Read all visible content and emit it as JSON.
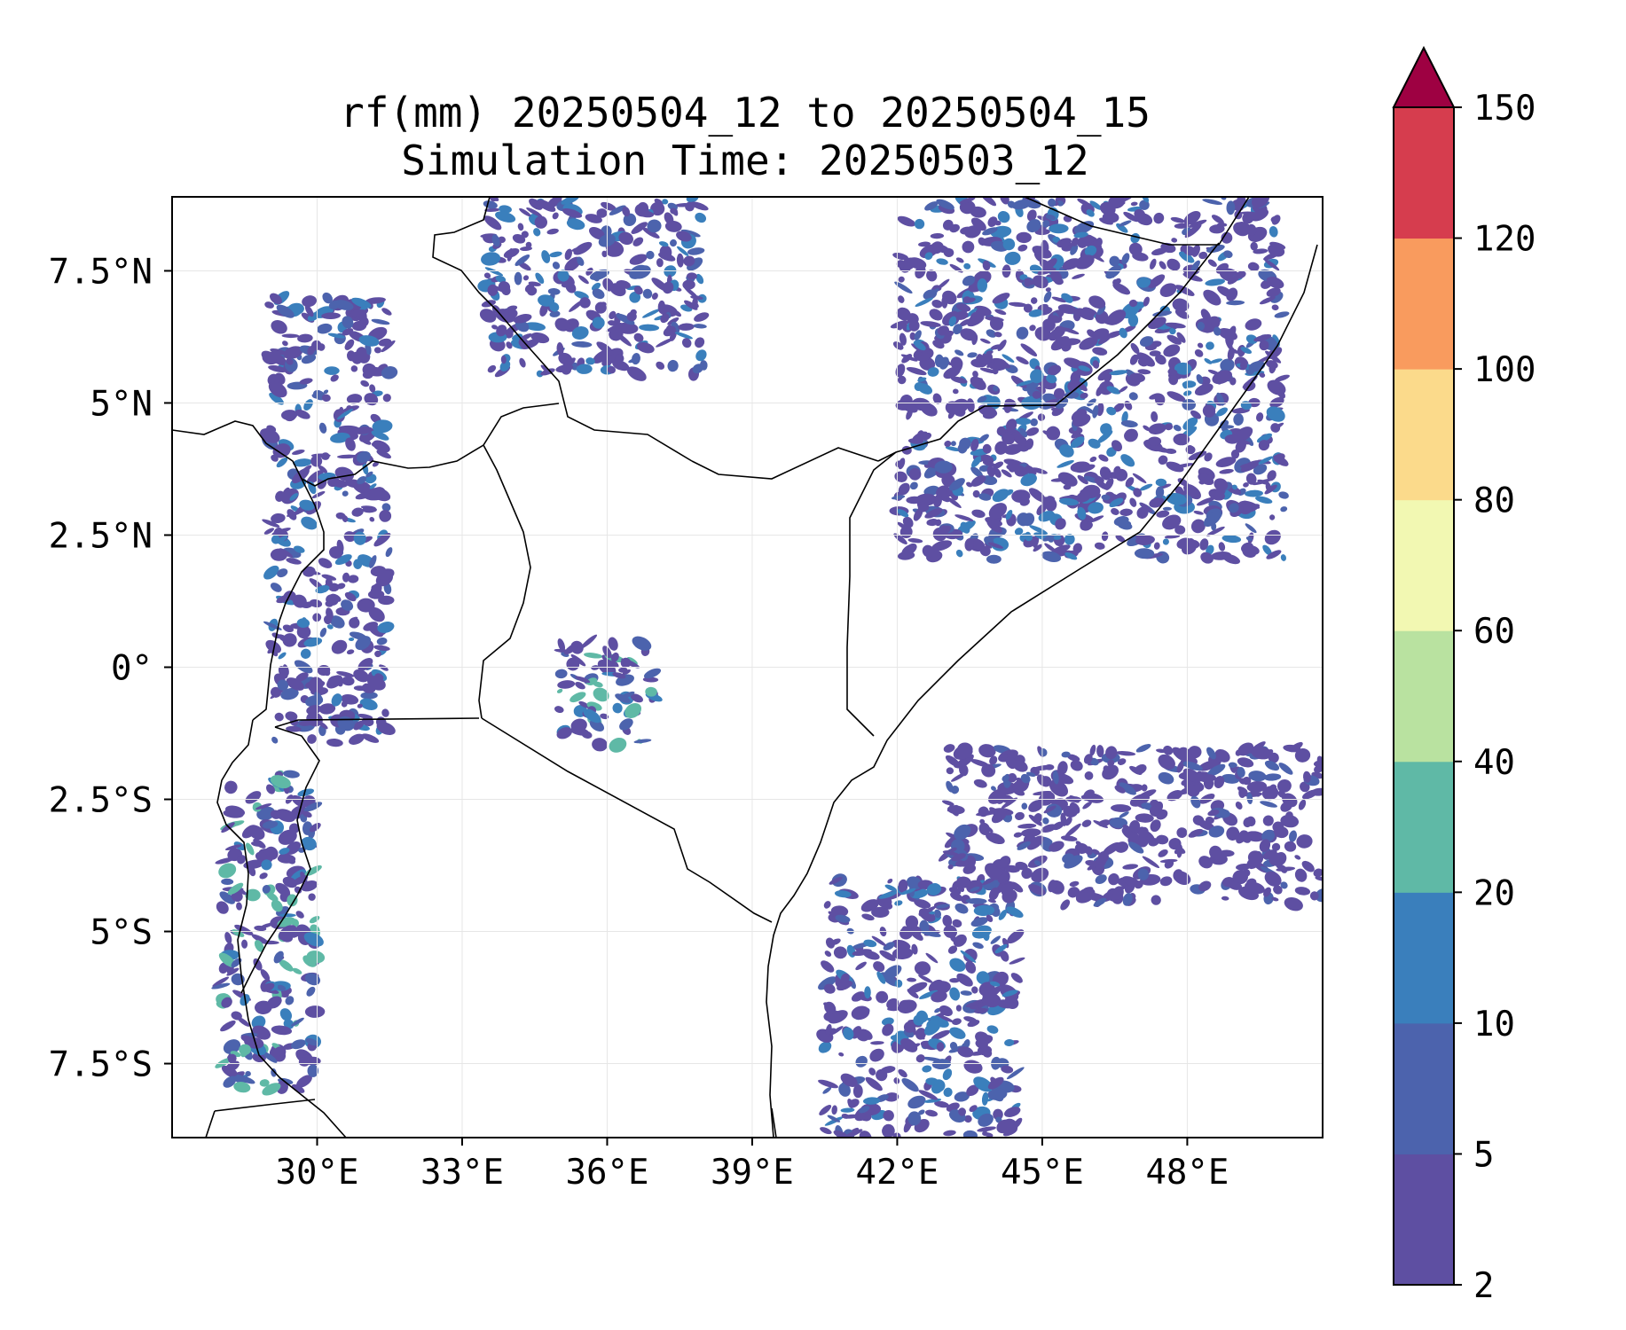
{
  "title": {
    "line1": "rf(mm) 20250504_12 to 20250504_15",
    "line2": "Simulation Time: 20250503_12"
  },
  "chart_data": {
    "type": "heatmap",
    "variable": "rf(mm)",
    "x_axis": {
      "range": [
        27.0,
        50.8
      ],
      "tick_values": [
        30,
        33,
        36,
        39,
        42,
        45,
        48
      ],
      "tick_labels": [
        "30°E",
        "33°E",
        "36°E",
        "39°E",
        "42°E",
        "45°E",
        "48°E"
      ]
    },
    "y_axis": {
      "range": [
        -8.9,
        8.9
      ],
      "tick_values": [
        7.5,
        5,
        2.5,
        0,
        -2.5,
        -5,
        -7.5
      ],
      "tick_labels": [
        "7.5°N",
        "5°N",
        "2.5°N",
        "0°",
        "2.5°S",
        "5°S",
        "7.5°S"
      ]
    },
    "grid": true,
    "colorbar": {
      "placement": "right",
      "extend": "max",
      "levels": [
        2,
        5,
        10,
        20,
        40,
        60,
        80,
        100,
        120,
        150
      ],
      "tick_labels": [
        "2",
        "5",
        "10",
        "20",
        "40",
        "60",
        "80",
        "100",
        "120",
        "150"
      ],
      "colors": [
        "#5e4fa2",
        "#4c63ad",
        "#3a7fbc",
        "#5fb9a6",
        "#b9e2a0",
        "#f2f8b2",
        "#fbda8b",
        "#f99b5e",
        "#d63d4e"
      ],
      "over_color": "#9e0142"
    },
    "rain_regions": [
      {
        "lon": [
          29.0,
          31.5
        ],
        "lat": [
          -1.5,
          7.0
        ],
        "max_mm": 20
      },
      {
        "lon": [
          28.0,
          30.0
        ],
        "lat": [
          -8.0,
          -2.0
        ],
        "max_mm": 40
      },
      {
        "lon": [
          35.0,
          37.0
        ],
        "lat": [
          -1.5,
          0.5
        ],
        "max_mm": 40
      },
      {
        "lon": [
          33.5,
          38.0
        ],
        "lat": [
          5.5,
          8.9
        ],
        "max_mm": 20
      },
      {
        "lon": [
          42.0,
          50.0
        ],
        "lat": [
          2.0,
          8.9
        ],
        "max_mm": 20
      },
      {
        "lon": [
          40.5,
          44.5
        ],
        "lat": [
          -8.9,
          -4.0
        ],
        "max_mm": 20
      },
      {
        "lon": [
          43.0,
          50.8
        ],
        "lat": [
          -4.5,
          -1.5
        ],
        "max_mm": 10
      }
    ]
  },
  "map": {
    "border_color": "#000000",
    "coast_color": "#000000"
  }
}
